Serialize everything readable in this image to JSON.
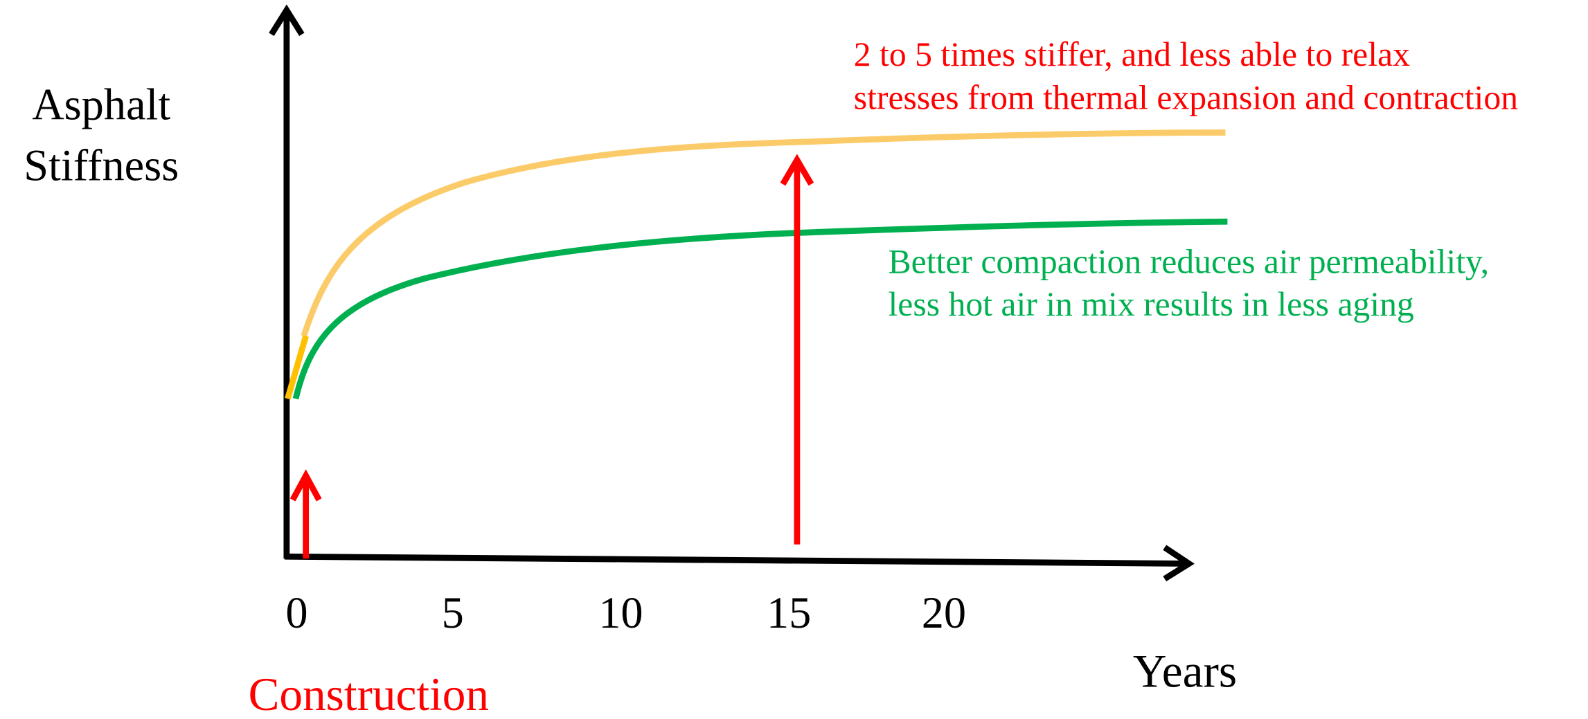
{
  "y_axis_label": [
    "Asphalt",
    "Stiffness"
  ],
  "x_axis_label": "Years",
  "x_ticks": [
    "0",
    "5",
    "10",
    "15",
    "20"
  ],
  "construction_label": "Construction",
  "upper_annotation": [
    "2 to 5 times stiffer, and less able to relax",
    "stresses from thermal expansion and contraction"
  ],
  "lower_annotation": [
    "Better compaction reduces air permeability,",
    "less hot air in mix results in less aging"
  ]
}
